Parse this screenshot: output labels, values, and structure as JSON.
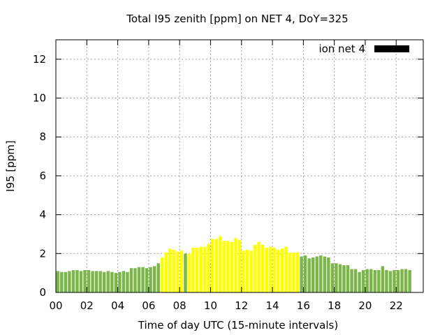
{
  "chart_data": {
    "type": "bar",
    "title": "Total I95 zenith [ppm] on NET 4, DoY=325",
    "xlabel": "Time of day UTC (15-minute intervals)",
    "ylabel": "I95 [ppm]",
    "xlim": [
      0,
      23.75
    ],
    "ylim": [
      0,
      13
    ],
    "x_tick_labels": [
      "00",
      "02",
      "04",
      "06",
      "08",
      "10",
      "12",
      "14",
      "16",
      "18",
      "20",
      "22"
    ],
    "y_tick_labels": [
      "0",
      "2",
      "4",
      "6",
      "8",
      "10",
      "12"
    ],
    "grid": true,
    "legend": {
      "position": "top-right",
      "entries": [
        {
          "label": "ion net 4",
          "color": "#000000"
        }
      ]
    },
    "colors": {
      "low": "#7ab648",
      "high": "#ffff00"
    },
    "bin_hours": 0.25,
    "values": [
      1.1,
      1.05,
      1.05,
      1.1,
      1.15,
      1.15,
      1.1,
      1.15,
      1.15,
      1.1,
      1.1,
      1.1,
      1.05,
      1.1,
      1.05,
      1.0,
      1.05,
      1.1,
      1.05,
      1.25,
      1.25,
      1.3,
      1.3,
      1.25,
      1.3,
      1.35,
      1.5,
      1.8,
      2.05,
      2.25,
      2.2,
      2.1,
      2.15,
      2.0,
      2.0,
      2.3,
      2.3,
      2.35,
      2.35,
      2.5,
      2.75,
      2.75,
      2.9,
      2.65,
      2.65,
      2.6,
      2.8,
      2.7,
      2.15,
      2.2,
      2.15,
      2.45,
      2.6,
      2.45,
      2.3,
      2.35,
      2.3,
      2.2,
      2.25,
      2.35,
      2.05,
      2.05,
      2.05,
      1.85,
      1.9,
      1.75,
      1.8,
      1.85,
      1.9,
      1.85,
      1.8,
      1.5,
      1.5,
      1.45,
      1.4,
      1.4,
      1.2,
      1.2,
      1.05,
      1.15,
      1.2,
      1.2,
      1.15,
      1.15,
      1.35,
      1.15,
      1.1,
      1.15,
      1.15,
      1.2,
      1.2,
      1.15
    ],
    "levels": [
      0,
      0,
      0,
      0,
      0,
      0,
      0,
      0,
      0,
      0,
      0,
      0,
      0,
      0,
      0,
      0,
      0,
      0,
      0,
      0,
      0,
      0,
      0,
      0,
      0,
      0,
      0,
      1,
      1,
      1,
      1,
      1,
      1,
      0,
      1,
      1,
      1,
      1,
      1,
      1,
      1,
      1,
      1,
      1,
      1,
      1,
      1,
      1,
      1,
      1,
      1,
      1,
      1,
      1,
      1,
      1,
      1,
      1,
      1,
      1,
      1,
      1,
      1,
      0,
      0,
      0,
      0,
      0,
      0,
      0,
      0,
      0,
      0,
      0,
      0,
      0,
      0,
      0,
      0,
      0,
      0,
      0,
      0,
      0,
      0,
      0,
      0,
      0,
      0,
      0,
      0,
      0
    ]
  }
}
